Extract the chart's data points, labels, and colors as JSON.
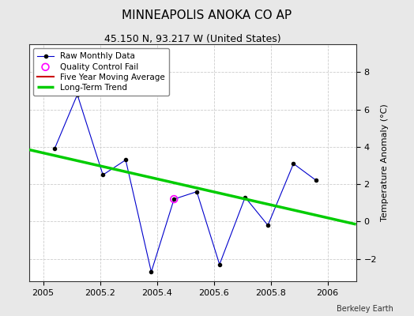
{
  "title": "MINNEAPOLIS ANOKA CO AP",
  "subtitle": "45.150 N, 93.217 W (United States)",
  "ylabel": "Temperature Anomaly (°C)",
  "credit": "Berkeley Earth",
  "xlim": [
    2004.95,
    2006.1
  ],
  "ylim": [
    -3.2,
    9.5
  ],
  "yticks": [
    -2,
    0,
    2,
    4,
    6,
    8
  ],
  "xticks": [
    2005.0,
    2005.2,
    2005.4,
    2005.6,
    2005.8,
    2006.0
  ],
  "xtick_labels": [
    "2005",
    "2005.2",
    "2005.4",
    "2005.6",
    "2005.8",
    "2006"
  ],
  "fig_bg_color": "#e8e8e8",
  "plot_bg_color": "#ffffff",
  "raw_x": [
    2005.04,
    2005.12,
    2005.21,
    2005.29,
    2005.38,
    2005.46,
    2005.54,
    2005.62,
    2005.71,
    2005.79,
    2005.88,
    2005.96
  ],
  "raw_y": [
    3.9,
    6.8,
    2.5,
    3.3,
    -2.7,
    1.2,
    1.6,
    -2.3,
    1.3,
    -0.2,
    3.1,
    2.2
  ],
  "raw_color": "#0000cc",
  "raw_marker_color": "#000000",
  "raw_linewidth": 0.8,
  "raw_markersize": 3,
  "qc_fail_x": [
    2005.46
  ],
  "qc_fail_y": [
    1.2
  ],
  "qc_color": "#ff00ff",
  "trend_x": [
    2004.95,
    2006.1
  ],
  "trend_y": [
    3.85,
    -0.15
  ],
  "trend_color": "#00cc00",
  "trend_linewidth": 2.5,
  "mavg_color": "#cc0000",
  "mavg_linewidth": 1.5,
  "grid_color": "#cccccc",
  "grid_linestyle": "--",
  "grid_linewidth": 0.6,
  "title_fontsize": 11,
  "subtitle_fontsize": 9,
  "tick_fontsize": 8,
  "ylabel_fontsize": 8,
  "legend_fontsize": 7.5,
  "credit_fontsize": 7
}
